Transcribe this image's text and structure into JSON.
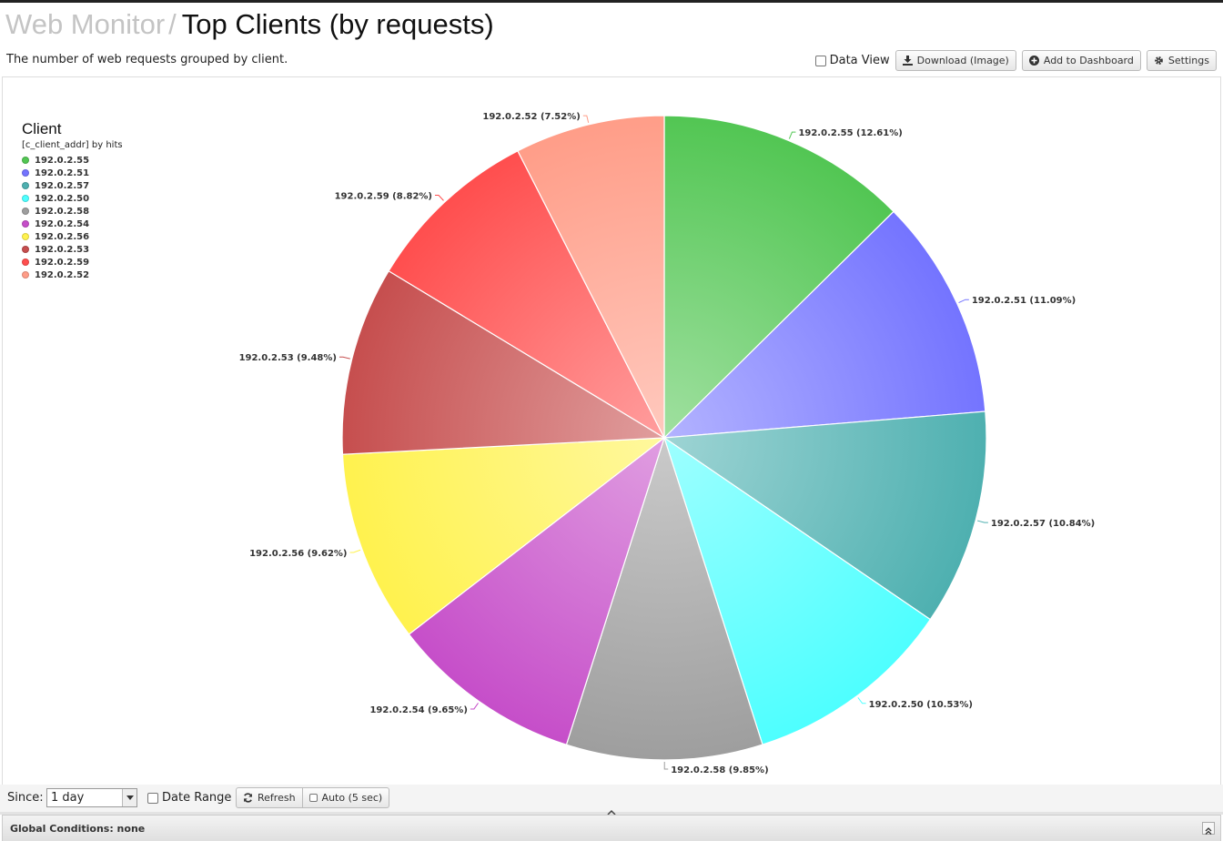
{
  "header": {
    "crumb": "Web Monitor",
    "separator": "/",
    "title": "Top Clients (by requests)",
    "subtitle": "The number of web requests grouped by client."
  },
  "toolbar": {
    "data_view_label": "Data View",
    "download_label": "Download (Image)",
    "dashboard_label": "Add to Dashboard",
    "settings_label": "Settings"
  },
  "chart_data": {
    "type": "pie",
    "legend_title": "Client",
    "legend_subtitle": "[c_client_addr] by hits",
    "legend_position": "top-left",
    "slices": [
      {
        "label": "192.0.2.55",
        "value": 12.61,
        "display": "192.0.2.55 (12.61%)",
        "color": "#52c653"
      },
      {
        "label": "192.0.2.51",
        "value": 11.09,
        "display": "192.0.2.51 (11.09%)",
        "color": "#7474ff"
      },
      {
        "label": "192.0.2.57",
        "value": 10.84,
        "display": "192.0.2.57 (10.84%)",
        "color": "#4eb0b0"
      },
      {
        "label": "192.0.2.50",
        "value": 10.53,
        "display": "192.0.2.50 (10.53%)",
        "color": "#4effff"
      },
      {
        "label": "192.0.2.58",
        "value": 9.85,
        "display": "192.0.2.58 (9.85%)",
        "color": "#9e9e9e"
      },
      {
        "label": "192.0.2.54",
        "value": 9.65,
        "display": "192.0.2.54 (9.65%)",
        "color": "#c64ec9"
      },
      {
        "label": "192.0.2.56",
        "value": 9.62,
        "display": "192.0.2.56 (9.62%)",
        "color": "#fff24e"
      },
      {
        "label": "192.0.2.53",
        "value": 9.48,
        "display": "192.0.2.53 (9.48%)",
        "color": "#c64e4e"
      },
      {
        "label": "192.0.2.59",
        "value": 8.82,
        "display": "192.0.2.59 (8.82%)",
        "color": "#ff4e4e"
      },
      {
        "label": "192.0.2.52",
        "value": 7.52,
        "display": "192.0.2.52 (7.52%)",
        "color": "#ff9d88"
      }
    ]
  },
  "footer": {
    "since_label": "Since:",
    "since_value": "1 day",
    "date_range_label": "Date Range",
    "refresh_label": "Refresh",
    "auto_label": "Auto (5 sec)"
  },
  "global": {
    "text": "Global Conditions: none"
  }
}
